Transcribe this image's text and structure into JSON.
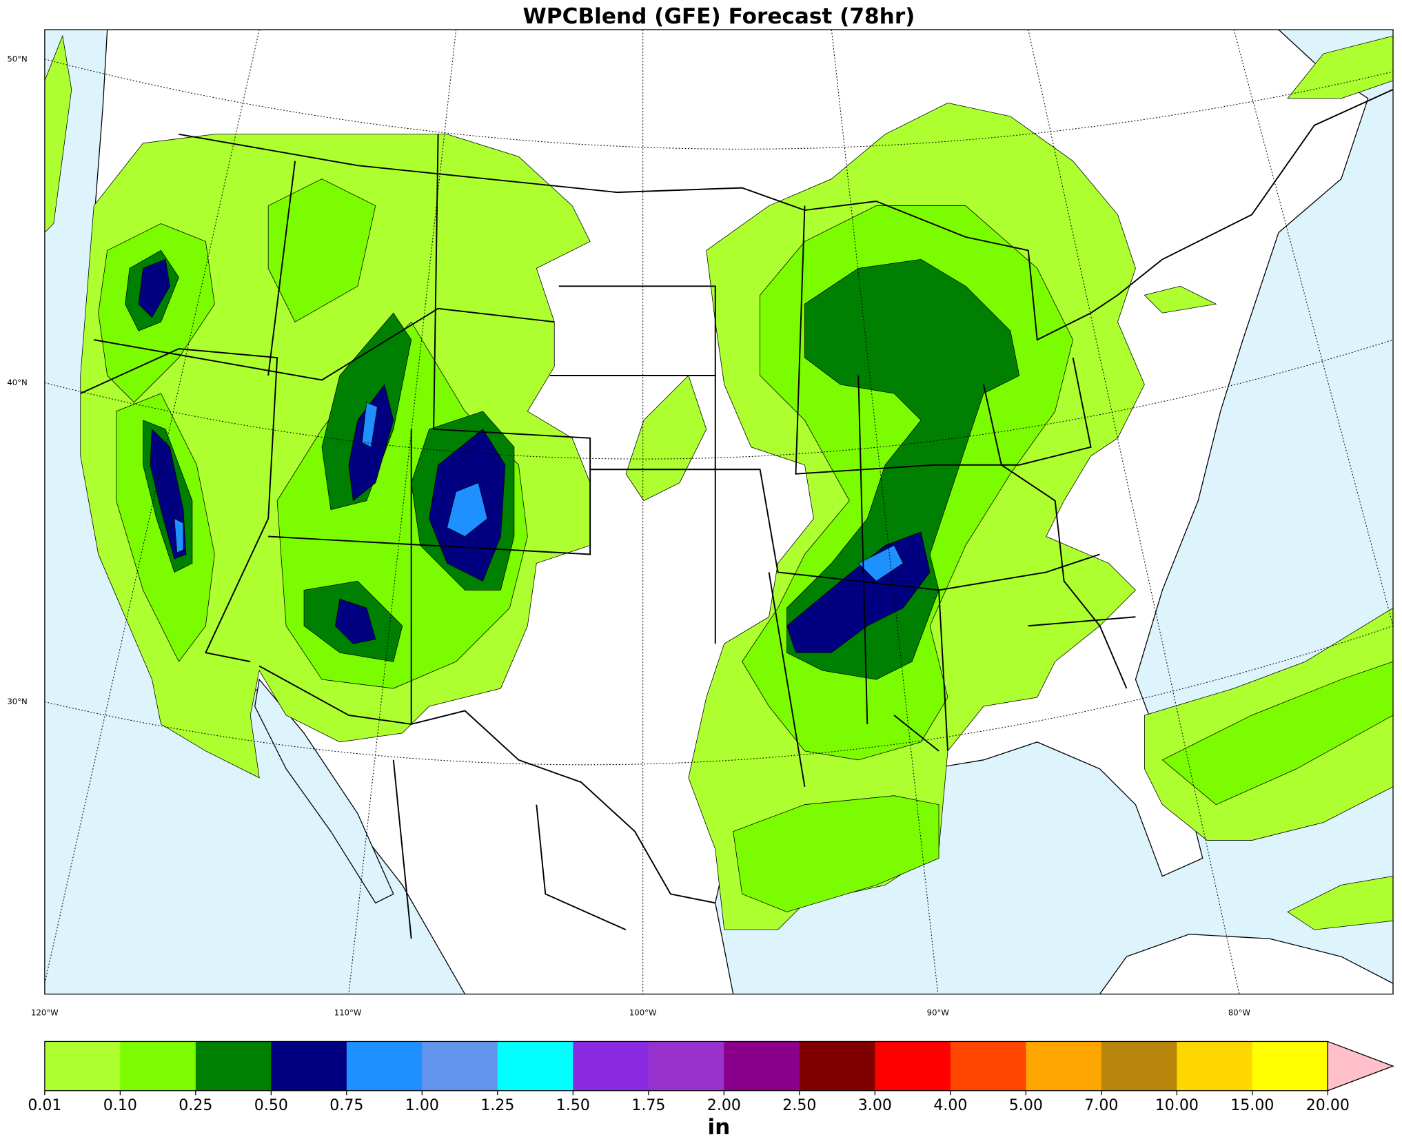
{
  "title": "WPCBlend (GFE) Forecast (78hr)",
  "map": {
    "lat_labels": [
      "50°N",
      "40°N",
      "30°N"
    ],
    "lon_labels": [
      "120°W",
      "110°W",
      "100°W",
      "90°W",
      "80°W"
    ]
  },
  "colorbar": {
    "bounds": [
      0.01,
      {
        "value": 0.1,
        "label": "0.10"
      },
      0.25,
      {
        "value": 0.5,
        "label": "0.50"
      },
      0.75,
      {
        "value": 1,
        "label": "1.00"
      },
      1.25,
      {
        "value": 1.5,
        "label": "1.50"
      },
      1.75,
      {
        "value": 2,
        "label": "2.00"
      },
      {
        "value": 2.5,
        "label": "2.50"
      },
      {
        "value": 3,
        "label": "3.00"
      },
      {
        "value": 4,
        "label": "4.00"
      },
      {
        "value": 5,
        "label": "5.00"
      },
      {
        "value": 7,
        "label": "7.00"
      },
      {
        "value": 10,
        "label": "10.00"
      },
      {
        "value": 15,
        "label": "15.00"
      },
      {
        "value": 20,
        "label": "20.00"
      }
    ],
    "colors": [
      "#adff2f",
      "#7cfc00",
      "#008000",
      "#000080",
      "#1e90ff",
      "#6495ed",
      "#00ffff",
      "#8a2be2",
      "#9932cc",
      "#8b008b",
      "#800000",
      "#ff0000",
      "#ff4500",
      "#ffa500",
      "#b8860b",
      "#ffd700",
      "#ffff00"
    ],
    "extend_color": "#ffc0cb",
    "label": "in"
  }
}
